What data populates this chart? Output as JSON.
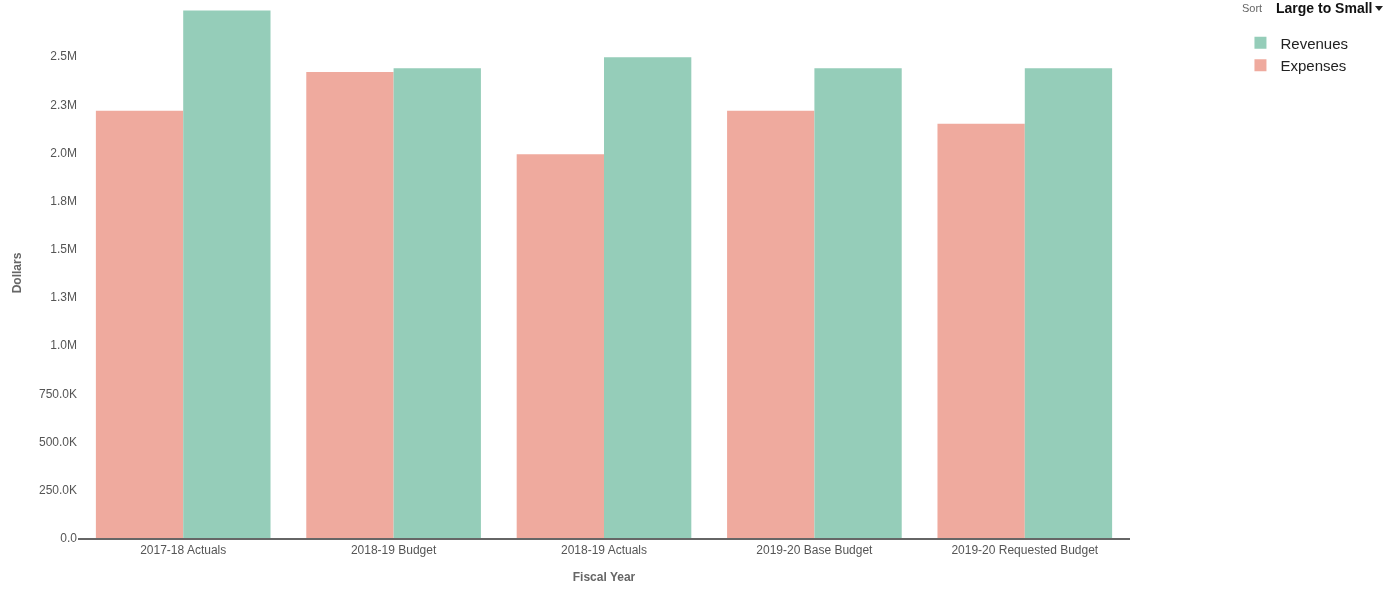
{
  "chart_data": {
    "type": "bar",
    "xlabel": "Fiscal Year",
    "ylabel": "Dollars",
    "categories": [
      "2017-18 Actuals",
      "2018-19 Budget",
      "2018-19 Actuals",
      "2019-20 Base Budget",
      "2019-20 Requested Budget"
    ],
    "series": [
      {
        "name": "Expenses",
        "color": "#efaa9e",
        "values": [
          2217000,
          2418000,
          1991000,
          2217000,
          2150000
        ]
      },
      {
        "name": "Revenues",
        "color": "#95cdb9",
        "values": [
          2737000,
          2438000,
          2495000,
          2438000,
          2438000
        ]
      }
    ],
    "ylim": [
      0,
      2750000
    ],
    "yticks": [
      {
        "value": 0,
        "label": "0.0"
      },
      {
        "value": 250000,
        "label": "250.0K"
      },
      {
        "value": 500000,
        "label": "500.0K"
      },
      {
        "value": 750000,
        "label": "750.0K"
      },
      {
        "value": 1000000,
        "label": "1.0M"
      },
      {
        "value": 1250000,
        "label": "1.3M"
      },
      {
        "value": 1500000,
        "label": "1.5M"
      },
      {
        "value": 1750000,
        "label": "1.8M"
      },
      {
        "value": 2000000,
        "label": "2.0M"
      },
      {
        "value": 2250000,
        "label": "2.3M"
      },
      {
        "value": 2500000,
        "label": "2.5M"
      }
    ],
    "grid": false,
    "legend": "top right",
    "annotations": [
      "Sort",
      "Large to Small"
    ]
  }
}
